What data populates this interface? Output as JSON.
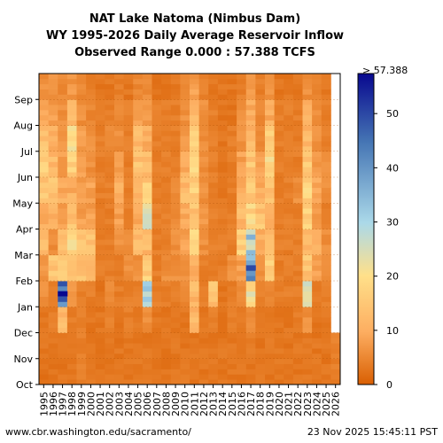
{
  "chart_data": {
    "type": "heatmap",
    "title_lines": [
      "NAT Lake Natoma (Nimbus Dam)",
      "WY 1995-2026 Daily Average Reservoir Inflow",
      "Observed Range 0.000 : 57.388 TCFS"
    ],
    "x_categories": [
      "1995",
      "1996",
      "1997",
      "1998",
      "1999",
      "2000",
      "2001",
      "2002",
      "2003",
      "2004",
      "2005",
      "2006",
      "2007",
      "2008",
      "2009",
      "2010",
      "2011",
      "2012",
      "2013",
      "2014",
      "2015",
      "2016",
      "2017",
      "2018",
      "2019",
      "2020",
      "2021",
      "2022",
      "2023",
      "2024",
      "2025",
      "2026"
    ],
    "y_months": [
      "Oct",
      "Nov",
      "Dec",
      "Jan",
      "Feb",
      "Mar",
      "Apr",
      "May",
      "Jun",
      "Jul",
      "Aug",
      "Sep"
    ],
    "colorbar": {
      "min": 0,
      "max": 57.388,
      "ticks": [
        0,
        10,
        20,
        30,
        40,
        50
      ],
      "max_label": "> 57.388"
    },
    "colors": {
      "low": "#d95f02",
      "mid": "#fdae61",
      "mid2": "#ffe08a",
      "high1": "#abd9e9",
      "high2": "#4575b4",
      "max": "#08088f"
    },
    "year_month_avg": {
      "1995": [
        2,
        3,
        3,
        6,
        7,
        12,
        10,
        14,
        16,
        14,
        9,
        6
      ],
      "1996": [
        3,
        3,
        4,
        4,
        14,
        6,
        10,
        14,
        12,
        10,
        8,
        6
      ],
      "1997": [
        3,
        3,
        12,
        45,
        18,
        12,
        8,
        10,
        8,
        7,
        6,
        5
      ],
      "1998": [
        3,
        3,
        4,
        7,
        14,
        18,
        14,
        10,
        16,
        18,
        12,
        7
      ],
      "1999": [
        4,
        4,
        4,
        4,
        14,
        16,
        8,
        8,
        8,
        8,
        6,
        5
      ],
      "2000": [
        3,
        3,
        3,
        4,
        10,
        14,
        8,
        8,
        6,
        6,
        5,
        4
      ],
      "2001": [
        3,
        3,
        3,
        3,
        4,
        4,
        4,
        4,
        4,
        4,
        4,
        3
      ],
      "2002": [
        3,
        3,
        4,
        5,
        4,
        4,
        4,
        4,
        4,
        5,
        4,
        3
      ],
      "2003": [
        3,
        3,
        3,
        4,
        4,
        6,
        8,
        10,
        8,
        6,
        5,
        4
      ],
      "2004": [
        3,
        3,
        4,
        4,
        6,
        6,
        4,
        4,
        4,
        4,
        4,
        3
      ],
      "2005": [
        3,
        3,
        3,
        4,
        6,
        12,
        10,
        12,
        14,
        12,
        8,
        5
      ],
      "2006": [
        3,
        3,
        6,
        30,
        16,
        12,
        22,
        16,
        14,
        10,
        8,
        6
      ],
      "2007": [
        3,
        3,
        3,
        4,
        4,
        4,
        4,
        4,
        4,
        4,
        4,
        3
      ],
      "2008": [
        3,
        3,
        3,
        4,
        6,
        4,
        4,
        4,
        4,
        4,
        4,
        3
      ],
      "2009": [
        3,
        3,
        3,
        4,
        6,
        6,
        6,
        6,
        4,
        4,
        4,
        3
      ],
      "2010": [
        3,
        3,
        3,
        5,
        6,
        8,
        10,
        12,
        10,
        8,
        6,
        5
      ],
      "2011": [
        3,
        3,
        12,
        12,
        10,
        18,
        14,
        16,
        18,
        16,
        12,
        8
      ],
      "2012": [
        3,
        3,
        3,
        4,
        4,
        6,
        8,
        6,
        6,
        6,
        6,
        4
      ],
      "2013": [
        3,
        3,
        4,
        14,
        4,
        4,
        4,
        4,
        4,
        4,
        4,
        3
      ],
      "2014": [
        3,
        3,
        3,
        3,
        4,
        4,
        4,
        3,
        3,
        3,
        3,
        3
      ],
      "2015": [
        3,
        3,
        4,
        4,
        6,
        4,
        4,
        4,
        4,
        4,
        3,
        3
      ],
      "2016": [
        3,
        3,
        4,
        6,
        8,
        16,
        12,
        10,
        8,
        6,
        6,
        4
      ],
      "2017": [
        3,
        4,
        6,
        20,
        40,
        30,
        18,
        16,
        14,
        12,
        10,
        7
      ],
      "2018": [
        3,
        3,
        3,
        4,
        6,
        10,
        14,
        10,
        8,
        6,
        5,
        4
      ],
      "2019": [
        3,
        3,
        3,
        5,
        16,
        12,
        12,
        14,
        18,
        16,
        10,
        7
      ],
      "2020": [
        3,
        3,
        3,
        4,
        4,
        4,
        4,
        4,
        4,
        4,
        4,
        3
      ],
      "2021": [
        3,
        3,
        3,
        4,
        4,
        4,
        4,
        4,
        4,
        4,
        4,
        3
      ],
      "2022": [
        3,
        3,
        4,
        4,
        4,
        4,
        4,
        6,
        4,
        4,
        4,
        3
      ],
      "2023": [
        3,
        3,
        6,
        24,
        14,
        12,
        16,
        18,
        16,
        12,
        10,
        6
      ],
      "2024": [
        3,
        3,
        3,
        4,
        8,
        10,
        8,
        10,
        8,
        6,
        6,
        4
      ],
      "2025": [
        3,
        3,
        3,
        4,
        6,
        6,
        4,
        6,
        6,
        4,
        4,
        3
      ],
      "2026": [
        4,
        4,
        null,
        null,
        null,
        null,
        null,
        null,
        null,
        null,
        null,
        null
      ]
    },
    "peaks": [
      {
        "year": "1997",
        "month": "Jan",
        "value": 57.388
      },
      {
        "year": "2017",
        "month": "Feb",
        "value": 50
      }
    ]
  },
  "footer": {
    "source": "www.cbr.washington.edu/sacramento/",
    "timestamp": "23 Nov 2025 15:45:11 PST"
  }
}
